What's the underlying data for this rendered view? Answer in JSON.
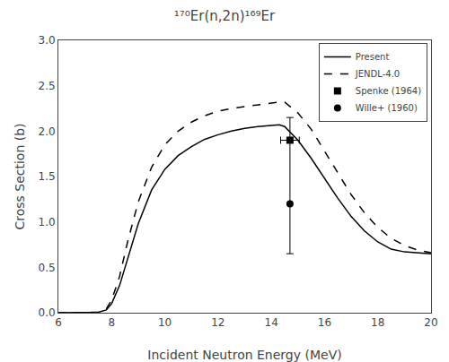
{
  "chart_data": {
    "type": "line",
    "title": "¹⁷⁰Er(n,2n)¹⁶⁹Er",
    "x_label": "Incident Neutron Energy (MeV)",
    "y_label": "Cross Section (b)",
    "xlim": [
      6,
      20
    ],
    "ylim": [
      0.0,
      3.0
    ],
    "xticks": [
      6,
      8,
      10,
      12,
      14,
      16,
      18,
      20
    ],
    "yticks": [
      {
        "value": 0.0,
        "label": "0.0"
      },
      0.5,
      {
        "value": 1.0,
        "label": "1.0"
      },
      1.5,
      {
        "value": 2.0,
        "label": "2.0"
      },
      2.5,
      {
        "value": 3.0,
        "label": "3.0"
      }
    ],
    "grid": false,
    "legend": "upper right",
    "series": [
      {
        "name": "Present",
        "type": "line",
        "color": "#000000",
        "line_style": "solid",
        "x": [
          6.0,
          7.0,
          7.5,
          7.8,
          8.0,
          8.3,
          8.6,
          9.0,
          9.5,
          10.0,
          10.5,
          11.0,
          11.5,
          12.0,
          12.5,
          13.0,
          13.5,
          14.0,
          14.3,
          14.5,
          15.0,
          15.5,
          16.0,
          16.5,
          17.0,
          17.5,
          18.0,
          18.5,
          19.0,
          19.5,
          20.0
        ],
        "values": [
          0.0,
          0.0,
          0.005,
          0.03,
          0.1,
          0.3,
          0.6,
          0.98,
          1.35,
          1.58,
          1.73,
          1.83,
          1.91,
          1.96,
          2.0,
          2.03,
          2.05,
          2.06,
          2.07,
          2.05,
          1.9,
          1.7,
          1.48,
          1.26,
          1.06,
          0.9,
          0.78,
          0.7,
          0.67,
          0.66,
          0.65
        ]
      },
      {
        "name": "JENDL-4.0",
        "type": "line",
        "color": "#000000",
        "line_style": "dashed",
        "x": [
          6.0,
          7.0,
          7.5,
          7.8,
          8.0,
          8.3,
          8.6,
          9.0,
          9.5,
          10.0,
          10.5,
          11.0,
          11.5,
          12.0,
          12.5,
          13.0,
          13.5,
          14.0,
          14.3,
          14.5,
          15.0,
          15.5,
          16.0,
          16.5,
          17.0,
          17.5,
          18.0,
          18.5,
          19.0,
          19.5,
          20.0
        ],
        "values": [
          0.0,
          0.0,
          0.005,
          0.04,
          0.14,
          0.4,
          0.78,
          1.22,
          1.6,
          1.85,
          2.0,
          2.1,
          2.17,
          2.22,
          2.25,
          2.27,
          2.29,
          2.31,
          2.32,
          2.32,
          2.2,
          2.02,
          1.78,
          1.54,
          1.3,
          1.1,
          0.94,
          0.82,
          0.74,
          0.69,
          0.66
        ]
      },
      {
        "name": "Spenke (1964)",
        "type": "scatter",
        "color": "#000000",
        "marker": "square",
        "x": [
          14.7
        ],
        "values": [
          1.9
        ],
        "x_error": [
          0.35
        ]
      },
      {
        "name": "Wille+ (1960)",
        "type": "scatter",
        "color": "#000000",
        "marker": "circle",
        "x": [
          14.7
        ],
        "values": [
          1.2
        ],
        "y_error_low": [
          0.55
        ],
        "y_error_high": [
          0.95
        ]
      }
    ]
  }
}
